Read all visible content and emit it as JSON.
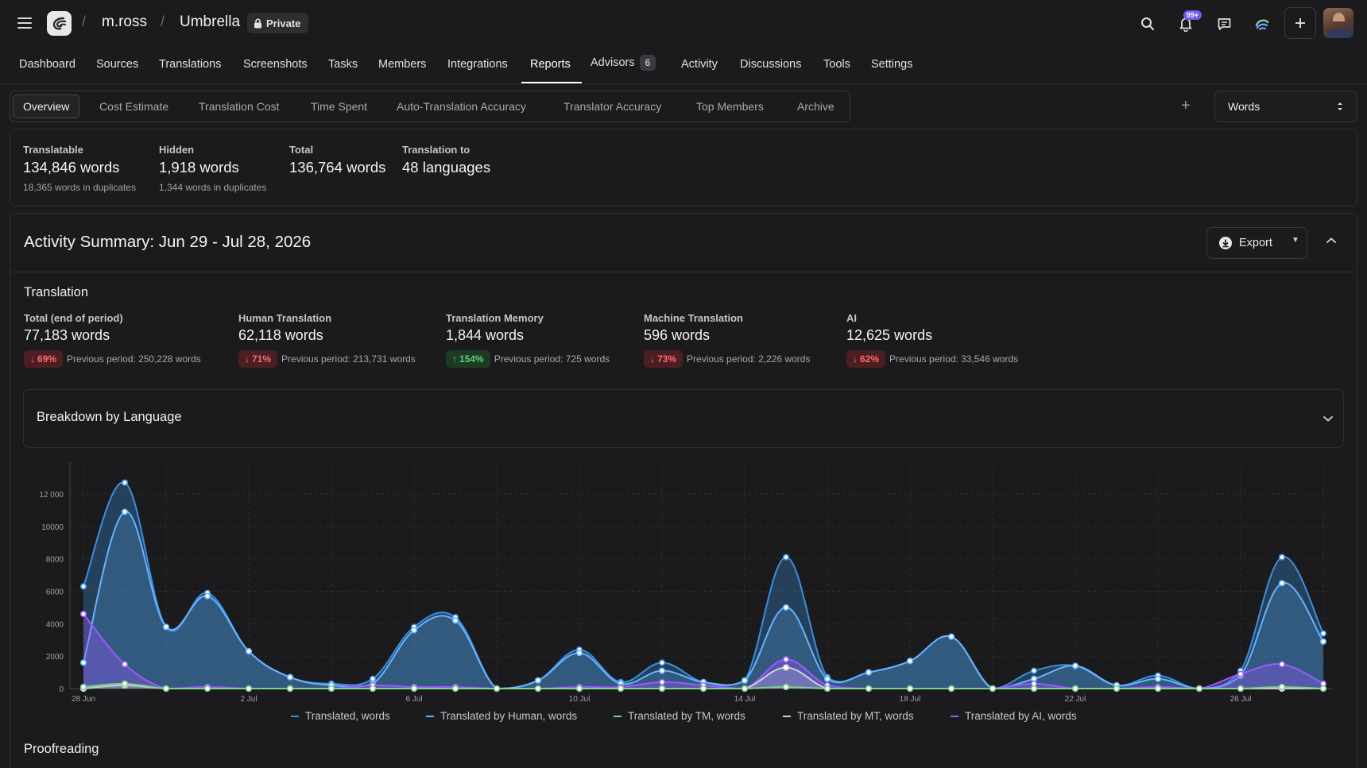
{
  "topbar": {
    "user": "m.ross",
    "project": "Umbrella",
    "visibility": "Private",
    "notifications_badge": "99+"
  },
  "nav": {
    "items": [
      "Dashboard",
      "Sources",
      "Translations",
      "Screenshots",
      "Tasks",
      "Members",
      "Integrations",
      "Reports",
      "Advisors",
      "Activity",
      "Discussions",
      "Tools",
      "Settings"
    ],
    "active": "Reports",
    "advisors_count": "6"
  },
  "subtabs": {
    "items": [
      "Overview",
      "Cost Estimate",
      "Translation Cost",
      "Time Spent",
      "Auto-Translation Accuracy",
      "Translator Accuracy",
      "Top Members",
      "Archive"
    ],
    "active": "Overview",
    "unit_select": "Words"
  },
  "stats": [
    {
      "label": "Translatable",
      "value": "134,846 words",
      "sub": "18,365 words in duplicates"
    },
    {
      "label": "Hidden",
      "value": "1,918 words",
      "sub": "1,344 words in duplicates"
    },
    {
      "label": "Total",
      "value": "136,764 words",
      "sub": ""
    },
    {
      "label": "Translation to",
      "value": "48 languages",
      "sub": ""
    }
  ],
  "activity": {
    "title": "Activity Summary: Jun 29 - Jul 28, 2026",
    "export_label": "Export",
    "translation_heading": "Translation",
    "breakdown_title": "Breakdown by Language",
    "proofreading_heading": "Proofreading",
    "metrics": [
      {
        "label": "Total (end of period)",
        "value": "77,183 words",
        "change": "69%",
        "direction": "down",
        "prev": "Previous period: 250,228 words"
      },
      {
        "label": "Human Translation",
        "value": "62,118 words",
        "change": "71%",
        "direction": "down",
        "prev": "Previous period: 213,731 words"
      },
      {
        "label": "Translation Memory",
        "value": "1,844 words",
        "change": "154%",
        "direction": "up",
        "prev": "Previous period: 725 words"
      },
      {
        "label": "Machine Translation",
        "value": "596 words",
        "change": "73%",
        "direction": "down",
        "prev": "Previous period: 2,226 words"
      },
      {
        "label": "AI",
        "value": "12,625 words",
        "change": "62%",
        "direction": "down",
        "prev": "Previous period: 33,546 words"
      }
    ]
  },
  "chart_data": {
    "type": "area",
    "x_ticks": [
      "28 Jun",
      "2 Jul",
      "6 Jul",
      "10 Jul",
      "14 Jul",
      "18 Jul",
      "22 Jul",
      "26 Jul"
    ],
    "y_ticks": [
      "0",
      "2000",
      "4000",
      "6000",
      "8000",
      "10000",
      "12 000"
    ],
    "ylim": [
      0,
      13000
    ],
    "x": [
      "Jun 28",
      "Jun 29",
      "Jun 30",
      "Jul 1",
      "Jul 2",
      "Jul 3",
      "Jul 4",
      "Jul 5",
      "Jul 6",
      "Jul 7",
      "Jul 8",
      "Jul 9",
      "Jul 10",
      "Jul 11",
      "Jul 12",
      "Jul 13",
      "Jul 14",
      "Jul 15",
      "Jul 16",
      "Jul 17",
      "Jul 18",
      "Jul 19",
      "Jul 20",
      "Jul 21",
      "Jul 22",
      "Jul 23",
      "Jul 24",
      "Jul 25",
      "Jul 26",
      "Jul 27",
      "Jul 28"
    ],
    "series": [
      {
        "name": "Translated, words",
        "color": "#3b8fe0",
        "values": [
          6300,
          12700,
          3800,
          5900,
          2300,
          700,
          300,
          600,
          3800,
          4400,
          0,
          500,
          2400,
          400,
          1600,
          400,
          500,
          8100,
          700,
          1000,
          1700,
          3200,
          0,
          1100,
          1400,
          200,
          800,
          0,
          1100,
          8100,
          3400
        ]
      },
      {
        "name": "Translated by Human, words",
        "color": "#66b4ff",
        "values": [
          1600,
          10900,
          3800,
          5700,
          2300,
          700,
          200,
          300,
          3600,
          4200,
          0,
          500,
          2200,
          300,
          1100,
          400,
          500,
          5000,
          600,
          1000,
          1700,
          3200,
          0,
          600,
          1400,
          200,
          600,
          0,
          800,
          6500,
          2900
        ]
      },
      {
        "name": "Translated by TM, words",
        "color": "#7ed08a",
        "values": [
          100,
          300,
          0,
          0,
          0,
          0,
          0,
          0,
          0,
          0,
          0,
          0,
          0,
          0,
          0,
          0,
          0,
          100,
          0,
          0,
          0,
          0,
          0,
          0,
          0,
          0,
          0,
          0,
          0,
          100,
          0
        ]
      },
      {
        "name": "Translated by MT, words",
        "color": "#cfd3da",
        "values": [
          0,
          200,
          0,
          0,
          0,
          0,
          0,
          0,
          0,
          0,
          0,
          0,
          0,
          0,
          0,
          0,
          0,
          1300,
          0,
          0,
          0,
          0,
          0,
          0,
          0,
          0,
          0,
          0,
          0,
          0,
          0
        ]
      },
      {
        "name": "Translated by AI, words",
        "color": "#9c59ff",
        "values": [
          4600,
          1500,
          0,
          100,
          0,
          0,
          0,
          200,
          100,
          100,
          0,
          0,
          100,
          100,
          400,
          200,
          0,
          1800,
          200,
          0,
          0,
          0,
          0,
          300,
          0,
          0,
          100,
          0,
          900,
          1500,
          300
        ]
      }
    ]
  }
}
